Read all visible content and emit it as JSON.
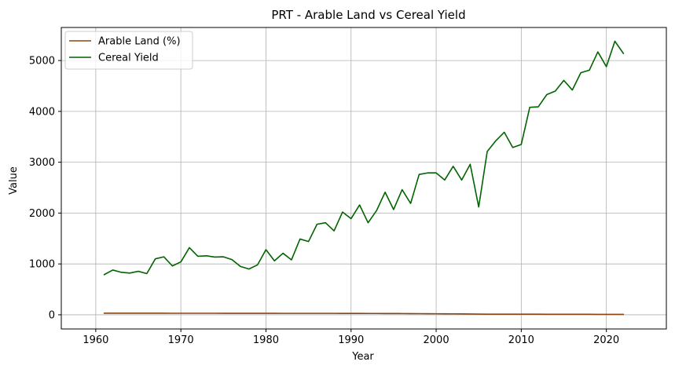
{
  "chart_data": {
    "type": "line",
    "title": "PRT - Arable Land vs Cereal Yield",
    "xlabel": "Year",
    "ylabel": "Value",
    "xlim": [
      1955.95,
      2027.05
    ],
    "ylim": [
      -279,
      5650
    ],
    "xticks": [
      1960,
      1970,
      1980,
      1990,
      2000,
      2010,
      2020
    ],
    "yticks": [
      0,
      1000,
      2000,
      3000,
      4000,
      5000
    ],
    "grid": true,
    "legend_position": "upper-left",
    "x": [
      1961,
      1962,
      1963,
      1964,
      1965,
      1966,
      1967,
      1968,
      1969,
      1970,
      1971,
      1972,
      1973,
      1974,
      1975,
      1976,
      1977,
      1978,
      1979,
      1980,
      1981,
      1982,
      1983,
      1984,
      1985,
      1986,
      1987,
      1988,
      1989,
      1990,
      1991,
      1992,
      1993,
      1994,
      1995,
      1996,
      1997,
      1998,
      1999,
      2000,
      2001,
      2002,
      2003,
      2004,
      2005,
      2006,
      2007,
      2008,
      2009,
      2010,
      2011,
      2012,
      2013,
      2014,
      2015,
      2016,
      2017,
      2018,
      2019,
      2020,
      2021,
      2022
    ],
    "series": [
      {
        "name": "Arable Land (%)",
        "color": "#8b4513",
        "values": [
          31,
          31,
          31,
          31,
          31,
          31,
          31,
          31,
          30,
          30,
          30,
          30,
          30,
          30,
          29,
          29,
          29,
          29,
          29,
          29,
          29,
          28,
          28,
          28,
          28,
          28,
          28,
          28,
          27,
          27,
          27,
          26,
          26,
          25,
          25,
          24,
          23,
          22,
          21,
          20,
          19,
          18,
          17,
          15,
          13,
          12,
          12,
          12,
          11,
          11,
          11,
          11,
          10,
          10,
          9,
          9,
          9,
          9,
          8,
          8,
          8,
          8
        ]
      },
      {
        "name": "Cereal Yield",
        "color": "#006400",
        "values": [
          790,
          880,
          835,
          820,
          855,
          810,
          1100,
          1140,
          960,
          1040,
          1320,
          1150,
          1160,
          1135,
          1140,
          1085,
          950,
          900,
          980,
          1280,
          1060,
          1210,
          1080,
          1490,
          1440,
          1780,
          1810,
          1650,
          2020,
          1890,
          2160,
          1810,
          2050,
          2410,
          2070,
          2460,
          2190,
          2760,
          2790,
          2790,
          2650,
          2920,
          2650,
          2960,
          2120,
          3210,
          3420,
          3590,
          3290,
          3350,
          4080,
          4090,
          4330,
          4400,
          4610,
          4420,
          4760,
          4810,
          5170,
          4880,
          5380,
          5140
        ]
      }
    ]
  }
}
